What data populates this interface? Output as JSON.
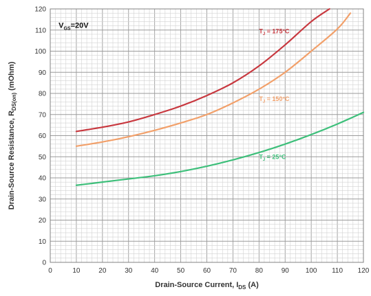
{
  "chart_data": {
    "type": "line",
    "title": "",
    "xlabel_main": "Drain-Source Current, I",
    "xlabel_sub": "DS",
    "xlabel_unit": " (A)",
    "ylabel_main": "Drain-Source Resistance, R",
    "ylabel_sub": "DS(on)",
    "ylabel_unit": " (mOhm)",
    "annotation_main": "V",
    "annotation_sub": "GS",
    "annotation_rest": "=20V",
    "xlim": [
      0,
      120
    ],
    "ylim": [
      0,
      120
    ],
    "x_ticks": [
      0,
      10,
      20,
      30,
      40,
      50,
      60,
      70,
      80,
      90,
      100,
      110,
      120
    ],
    "y_ticks": [
      0,
      10,
      20,
      30,
      40,
      50,
      60,
      70,
      80,
      90,
      100,
      110,
      120
    ],
    "grid": true,
    "series": [
      {
        "name": "T",
        "name_sub": "J",
        "name_rest": " = 175°C",
        "color": "#c8383f",
        "x": [
          10,
          20,
          30,
          40,
          50,
          60,
          70,
          80,
          90,
          100,
          107
        ],
        "y": [
          62,
          64,
          66.5,
          70,
          74,
          79,
          85,
          93,
          103,
          114,
          120
        ]
      },
      {
        "name": "T",
        "name_sub": "J",
        "name_rest": " = 150°C",
        "color": "#f2a06a",
        "x": [
          10,
          20,
          30,
          40,
          50,
          60,
          70,
          80,
          90,
          100,
          110,
          115
        ],
        "y": [
          55,
          57,
          59.5,
          62.5,
          66,
          70,
          75.5,
          82,
          90,
          100,
          110.5,
          118
        ]
      },
      {
        "name": "T",
        "name_sub": "J",
        "name_rest": " = 25°C",
        "color": "#3dbf7a",
        "x": [
          10,
          20,
          30,
          40,
          50,
          60,
          70,
          80,
          90,
          100,
          110,
          120
        ],
        "y": [
          36.5,
          38,
          39.5,
          41,
          43,
          45.5,
          48.5,
          52,
          56,
          60.5,
          65.5,
          71
        ]
      }
    ]
  }
}
